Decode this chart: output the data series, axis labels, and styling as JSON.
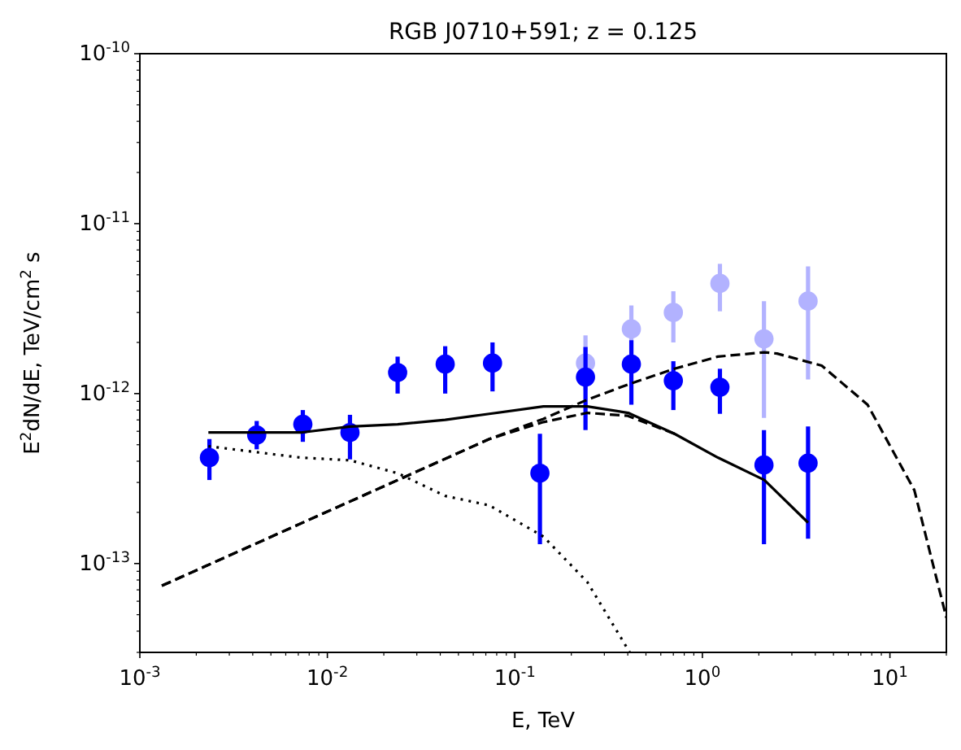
{
  "chart_data": {
    "type": "scatter",
    "title": "RGB J0710+591; z = 0.125",
    "xlabel": "E, TeV",
    "ylabel": "E$^{2}$dN/dE, TeV/cm$^{2}$ s",
    "log": "xy",
    "grid": false,
    "xlim": [
      0.001,
      20
    ],
    "ylim": [
      3e-14,
      1e-10
    ],
    "xticks": [
      {
        "value": 0.001,
        "label": "10$^{-3}$"
      },
      {
        "value": 0.002,
        "label": null
      },
      {
        "value": 0.003,
        "label": null
      },
      {
        "value": 0.004,
        "label": null
      },
      {
        "value": 0.005,
        "label": null
      },
      {
        "value": 0.006,
        "label": null
      },
      {
        "value": 0.007,
        "label": null
      },
      {
        "value": 0.008,
        "label": null
      },
      {
        "value": 0.009,
        "label": null
      },
      {
        "value": 0.01,
        "label": "10$^{-2}$"
      },
      {
        "value": 0.02,
        "label": null
      },
      {
        "value": 0.03,
        "label": null
      },
      {
        "value": 0.04,
        "label": null
      },
      {
        "value": 0.05,
        "label": null
      },
      {
        "value": 0.06,
        "label": null
      },
      {
        "value": 0.07,
        "label": null
      },
      {
        "value": 0.08,
        "label": null
      },
      {
        "value": 0.09,
        "label": null
      },
      {
        "value": 0.1,
        "label": "10$^{-1}$"
      },
      {
        "value": 0.2,
        "label": null
      },
      {
        "value": 0.3,
        "label": null
      },
      {
        "value": 0.4,
        "label": null
      },
      {
        "value": 0.5,
        "label": null
      },
      {
        "value": 0.6,
        "label": null
      },
      {
        "value": 0.7,
        "label": null
      },
      {
        "value": 0.8,
        "label": null
      },
      {
        "value": 0.9,
        "label": null
      },
      {
        "value": 1,
        "label": "10$^{0}$"
      },
      {
        "value": 2,
        "label": null
      },
      {
        "value": 3,
        "label": null
      },
      {
        "value": 4,
        "label": null
      },
      {
        "value": 5,
        "label": null
      },
      {
        "value": 6,
        "label": null
      },
      {
        "value": 7,
        "label": null
      },
      {
        "value": 8,
        "label": null
      },
      {
        "value": 9,
        "label": null
      },
      {
        "value": 10,
        "label": "10$^{1}$"
      },
      {
        "value": 20,
        "label": null
      }
    ],
    "yticks": [
      {
        "value": 3e-14,
        "label": null
      },
      {
        "value": 4e-14,
        "label": null
      },
      {
        "value": 5e-14,
        "label": null
      },
      {
        "value": 6e-14,
        "label": null
      },
      {
        "value": 7e-14,
        "label": null
      },
      {
        "value": 8e-14,
        "label": null
      },
      {
        "value": 9e-14,
        "label": null
      },
      {
        "value": 1e-13,
        "label": "10$^{-13}$"
      },
      {
        "value": 2e-13,
        "label": null
      },
      {
        "value": 3e-13,
        "label": null
      },
      {
        "value": 4e-13,
        "label": null
      },
      {
        "value": 5e-13,
        "label": null
      },
      {
        "value": 6e-13,
        "label": null
      },
      {
        "value": 7e-13,
        "label": null
      },
      {
        "value": 8e-13,
        "label": null
      },
      {
        "value": 9e-13,
        "label": null
      },
      {
        "value": 1e-12,
        "label": "10$^{-12}$"
      },
      {
        "value": 2e-12,
        "label": null
      },
      {
        "value": 3e-12,
        "label": null
      },
      {
        "value": 4e-12,
        "label": null
      },
      {
        "value": 5e-12,
        "label": null
      },
      {
        "value": 6e-12,
        "label": null
      },
      {
        "value": 7e-12,
        "label": null
      },
      {
        "value": 8e-12,
        "label": null
      },
      {
        "value": 9e-12,
        "label": null
      },
      {
        "value": 1e-11,
        "label": "10$^{-11}$"
      },
      {
        "value": 2e-11,
        "label": null
      },
      {
        "value": 3e-11,
        "label": null
      },
      {
        "value": 4e-11,
        "label": null
      },
      {
        "value": 5e-11,
        "label": null
      },
      {
        "value": 6e-11,
        "label": null
      },
      {
        "value": 7e-11,
        "label": null
      },
      {
        "value": 8e-11,
        "label": null
      },
      {
        "value": 9e-11,
        "label": null
      },
      {
        "value": 1e-10,
        "label": "10$^{-10}$"
      }
    ],
    "series": [
      {
        "type": "line",
        "color": "#000000",
        "line_style": "dotted",
        "marker": "none",
        "x": [
          0.00232,
          0.0072,
          0.0132,
          0.0237,
          0.0425,
          0.073,
          0.142,
          0.243,
          0.41
        ],
        "values": [
          4.9e-13,
          4.2e-13,
          4.05e-13,
          3.4e-13,
          2.5e-13,
          2.2e-13,
          1.44e-13,
          7.8e-14,
          3e-14
        ]
      },
      {
        "type": "line",
        "color": "#000000",
        "line_style": "dashed",
        "marker": "none",
        "x": [
          0.00131,
          0.073,
          0.142,
          0.243,
          0.4,
          0.71
        ],
        "values": [
          7.4e-14,
          5.4e-13,
          6.8e-13,
          7.7e-13,
          7.4e-13,
          5.8e-13
        ]
      },
      {
        "type": "line",
        "color": "#000000",
        "line_style": "dashed",
        "marker": "none",
        "x": [
          0.00131,
          0.073,
          0.142,
          0.243,
          0.4,
          0.71,
          1.21,
          2.14,
          2.5,
          4.33,
          7.6,
          13.5,
          20
        ],
        "values": [
          7.4e-14,
          5.4e-13,
          7.1e-13,
          9.2e-13,
          1.13e-12,
          1.4e-12,
          1.65e-12,
          1.75e-12,
          1.72e-12,
          1.46e-12,
          8.6e-13,
          2.7e-13,
          4.8e-14
        ]
      },
      {
        "type": "line",
        "color": "#000000",
        "line_style": "solid",
        "marker": "none",
        "x": [
          0.00232,
          0.0072,
          0.0132,
          0.0237,
          0.0425,
          0.073,
          0.142,
          0.243,
          0.402,
          0.71,
          1.21,
          2.14,
          3.66
        ],
        "values": [
          5.9e-13,
          5.9e-13,
          6.4e-13,
          6.6e-13,
          7e-13,
          7.6e-13,
          8.4e-13,
          8.4e-13,
          7.7e-13,
          5.8e-13,
          4.2e-13,
          3.1e-13,
          1.74e-13
        ]
      },
      {
        "color": "#b2b2ff",
        "marker": "circle",
        "x": [
          0.238,
          0.418,
          0.7,
          1.24,
          2.13,
          3.66
        ],
        "values": [
          1.51e-12,
          2.4e-12,
          3e-12,
          4.45e-12,
          2.1e-12,
          3.5e-12
        ],
        "errors": [
          [
            1.05e-12,
            2.2e-12
          ],
          [
            1.4e-12,
            3.3e-12
          ],
          [
            2e-12,
            4e-12
          ],
          [
            3.05e-12,
            5.8e-12
          ],
          [
            7.2e-13,
            3.5e-12
          ],
          [
            1.21e-12,
            5.6e-12
          ]
        ]
      },
      {
        "color": "#0000ff",
        "marker": "circle",
        "x": [
          0.00235,
          0.0042,
          0.0074,
          0.0132,
          0.0237,
          0.0425,
          0.076,
          0.136,
          0.238,
          0.418,
          0.7,
          1.24,
          2.13,
          3.66
        ],
        "values": [
          4.2e-13,
          5.7e-13,
          6.6e-13,
          5.9e-13,
          1.33e-12,
          1.49e-12,
          1.51e-12,
          3.4e-13,
          1.25e-12,
          1.49e-12,
          1.19e-12,
          1.09e-12,
          3.8e-13,
          3.9e-13
        ],
        "errors": [
          [
            3.1e-13,
            5.4e-13
          ],
          [
            4.7e-13,
            6.9e-13
          ],
          [
            5.2e-13,
            8e-13
          ],
          [
            4.1e-13,
            7.5e-13
          ],
          [
            1e-12,
            1.65e-12
          ],
          [
            1e-12,
            1.9e-12
          ],
          [
            1.03e-12,
            2e-12
          ],
          [
            1.3e-13,
            5.8e-13
          ],
          [
            6.1e-13,
            1.88e-12
          ],
          [
            8.6e-13,
            2.06e-12
          ],
          [
            8e-13,
            1.55e-12
          ],
          [
            7.6e-13,
            1.4e-12
          ],
          [
            1.3e-13,
            6.1e-13
          ],
          [
            1.4e-13,
            6.4e-13
          ]
        ]
      }
    ]
  }
}
